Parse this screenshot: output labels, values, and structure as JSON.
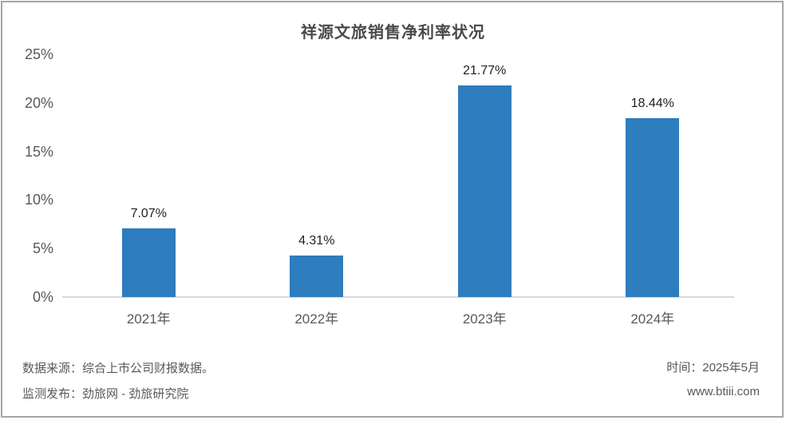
{
  "chart_data": {
    "type": "bar",
    "title": "祥源文旅销售净利率状况",
    "categories": [
      "2021年",
      "2022年",
      "2023年",
      "2024年"
    ],
    "values": [
      7.07,
      4.31,
      21.77,
      18.44
    ],
    "data_labels": [
      "7.07%",
      "4.31%",
      "21.77%",
      "18.44%"
    ],
    "xlabel": "",
    "ylabel": "",
    "ylim": [
      0,
      25
    ],
    "y_tick_values": [
      25,
      20,
      15,
      10,
      5,
      0
    ],
    "y_tick_labels": [
      "25%",
      "20%",
      "15%",
      "10%",
      "5%",
      "0%"
    ],
    "grid": false,
    "legend": false,
    "bar_color": "#2e7dbe",
    "axis_line_color": "#d9d9d9",
    "frame_border_color": "#a6a6a6"
  },
  "footer": {
    "source_label": "数据来源：综合上市公司财报数据。",
    "publisher_label": "监测发布：劲旅网 - 劲旅研究院",
    "time_label": "时间：2025年5月",
    "website": "www.btiii.com"
  }
}
